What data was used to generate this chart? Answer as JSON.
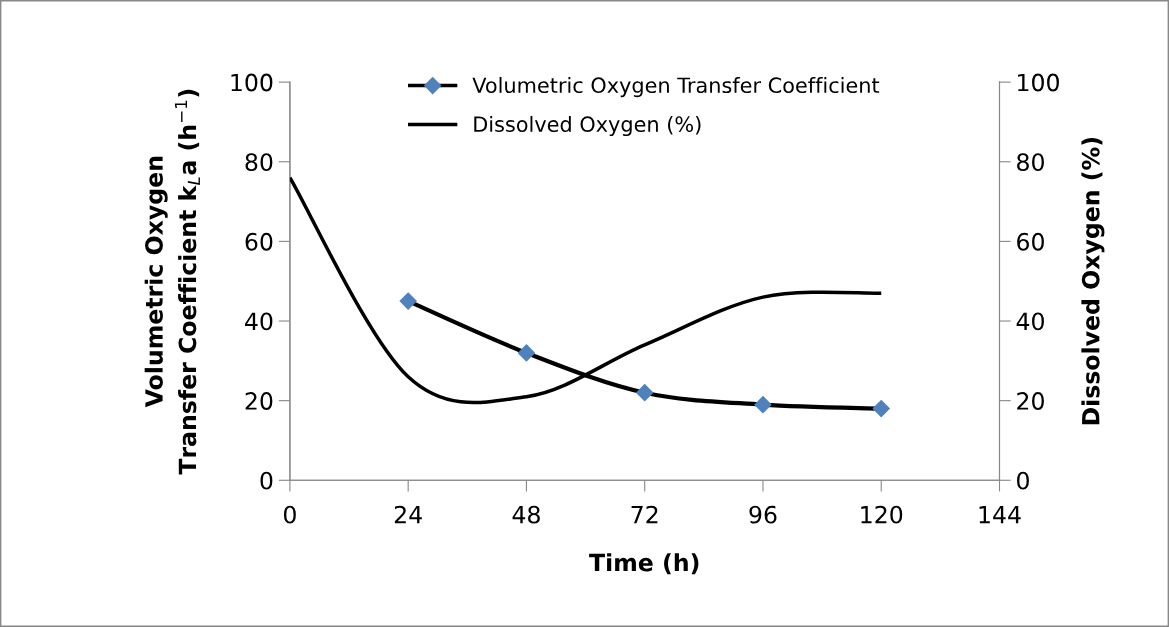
{
  "chart_data": {
    "type": "line",
    "xlabel": "Time (h)",
    "ylabel": "Volumetric Oxygen\nTransfer Coefficient k$_{L}$a (h$^{−1}$)",
    "y2label": "Dissolved Oxygen (%)",
    "xlim": [
      0,
      144
    ],
    "xticks": [
      0,
      24,
      48,
      72,
      96,
      120,
      144
    ],
    "ylim": [
      0,
      100
    ],
    "yticks": [
      0,
      20,
      40,
      60,
      80,
      100
    ],
    "y2lim": [
      0,
      100
    ],
    "y2ticks": [
      0,
      20,
      40,
      60,
      80,
      100
    ],
    "grid": false,
    "legend": "top",
    "series": [
      {
        "name": "Volumetric Oxygen Transfer Coefficient",
        "color": "#000000",
        "marker": "diamond",
        "x": [
          24,
          48,
          72,
          96,
          120
        ],
        "values": [
          45,
          32,
          22,
          19,
          18
        ]
      },
      {
        "name": "Dissolved Oxygen (%)",
        "color": "#000000",
        "marker": "none",
        "axis": "y2",
        "x": [
          0,
          24,
          48,
          72,
          96,
          120
        ],
        "values": [
          76,
          26,
          21,
          34,
          46,
          47
        ]
      }
    ]
  }
}
